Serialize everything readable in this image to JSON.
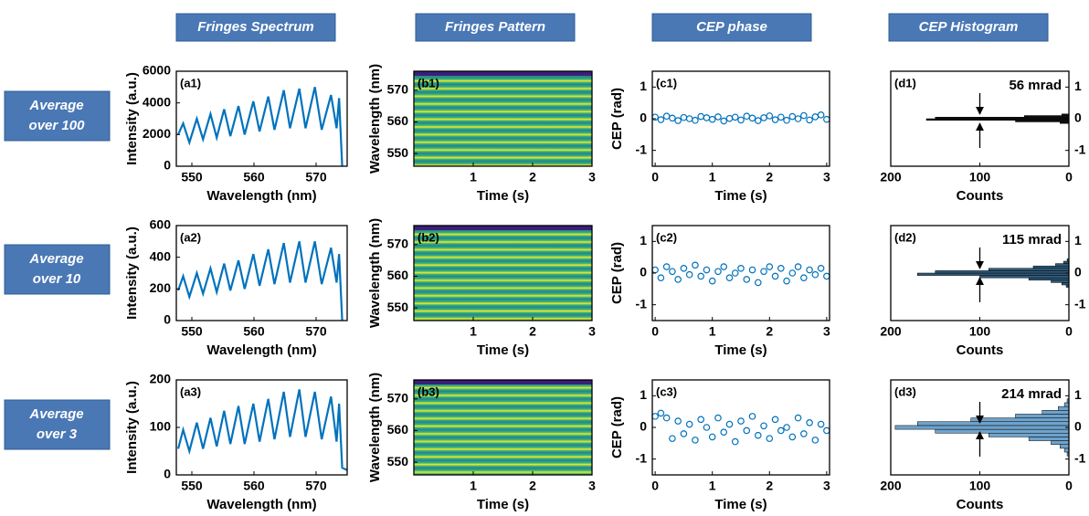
{
  "column_headers": [
    "Fringes Spectrum",
    "Fringes Pattern",
    "CEP phase",
    "CEP Histogram"
  ],
  "row_headers": [
    [
      "Average",
      "over 100"
    ],
    [
      "Average",
      "over 10"
    ],
    [
      "Average",
      "over 3"
    ]
  ],
  "chart_data": [
    {
      "type": "line",
      "panel_label": "(a1)",
      "xlabel": "Wavelength (nm)",
      "ylabel": "Intensity (a.u.)",
      "xlim": [
        547.5,
        575
      ],
      "ylim": [
        0,
        6000
      ],
      "xticks": [
        550,
        560,
        570
      ],
      "yticks": [
        0,
        2000,
        4000,
        6000
      ],
      "color": "#0072bd",
      "x": [
        547.8,
        548.6,
        549.6,
        550.8,
        551.8,
        553.0,
        554.0,
        555.2,
        556.2,
        557.5,
        558.5,
        559.9,
        560.9,
        562.3,
        563.3,
        564.8,
        565.8,
        567.3,
        568.3,
        569.8,
        570.9,
        572.4,
        573.3,
        573.7,
        574.2
      ],
      "values": [
        2000,
        2700,
        1500,
        3000,
        1700,
        3300,
        1800,
        3600,
        1900,
        3800,
        2000,
        4100,
        2200,
        4400,
        2300,
        4800,
        2400,
        4900,
        2400,
        5000,
        2300,
        4500,
        2400,
        4300,
        0
      ]
    },
    {
      "type": "image",
      "panel_label": "(b1)",
      "xlabel": "Time (s)",
      "ylabel": "Wavelength (nm)",
      "xlim": [
        0,
        3
      ],
      "ylim": [
        546,
        576
      ],
      "xticks": [
        1,
        2,
        3
      ],
      "yticks": [
        550,
        560,
        570
      ]
    },
    {
      "type": "scatter",
      "panel_label": "(c1)",
      "xlabel": "Time (s)",
      "ylabel": "CEP (rad)",
      "xlim": [
        -0.05,
        3.05
      ],
      "ylim": [
        -1.5,
        1.5
      ],
      "xticks": [
        0,
        1,
        2,
        3
      ],
      "yticks": [
        -1,
        0,
        1
      ],
      "color": "#0072bd",
      "x": [
        0,
        0.1,
        0.2,
        0.3,
        0.4,
        0.5,
        0.6,
        0.7,
        0.8,
        0.9,
        1,
        1.1,
        1.2,
        1.3,
        1.4,
        1.5,
        1.6,
        1.7,
        1.8,
        1.9,
        2,
        2.1,
        2.2,
        2.3,
        2.4,
        2.5,
        2.6,
        2.7,
        2.8,
        2.9,
        3
      ],
      "values": [
        0.05,
        -0.03,
        0.08,
        0.02,
        -0.06,
        0.04,
        0.0,
        -0.05,
        0.07,
        0.03,
        -0.02,
        0.06,
        -0.07,
        0.01,
        0.05,
        -0.04,
        0.08,
        0.02,
        -0.06,
        0.03,
        0.09,
        -0.03,
        0.05,
        -0.05,
        0.07,
        0.0,
        0.1,
        -0.04,
        0.06,
        0.12,
        -0.02
      ]
    },
    {
      "type": "histogram",
      "panel_label": "(d1)",
      "xlabel": "Counts",
      "annotation": "56 mrad",
      "xlim": [
        200,
        0
      ],
      "ylim": [
        -1.5,
        1.5
      ],
      "xticks": [
        200,
        100,
        0
      ],
      "yticks": [
        1,
        0,
        -1
      ],
      "y_axis_side": "right",
      "color": "#111111",
      "bins": [
        -0.15,
        -0.1,
        -0.05,
        0,
        0.05,
        0.1,
        0.15
      ],
      "values": [
        10,
        60,
        160,
        150,
        50,
        8
      ]
    },
    {
      "type": "line",
      "panel_label": "(a2)",
      "xlabel": "Wavelength (nm)",
      "ylabel": "Intensity (a.u.)",
      "xlim": [
        547.5,
        575
      ],
      "ylim": [
        0,
        600
      ],
      "xticks": [
        550,
        560,
        570
      ],
      "yticks": [
        0,
        200,
        400,
        600
      ],
      "color": "#0072bd",
      "x": [
        547.8,
        548.6,
        549.6,
        550.8,
        551.8,
        553.0,
        554.0,
        555.2,
        556.2,
        557.5,
        558.5,
        559.9,
        560.9,
        562.3,
        563.3,
        564.8,
        565.8,
        567.3,
        568.3,
        569.8,
        570.9,
        572.4,
        573.3,
        573.7,
        574.2
      ],
      "values": [
        190,
        280,
        150,
        300,
        170,
        330,
        180,
        360,
        190,
        380,
        200,
        420,
        220,
        450,
        230,
        490,
        240,
        500,
        240,
        500,
        230,
        460,
        240,
        420,
        0
      ]
    },
    {
      "type": "image",
      "panel_label": "(b2)",
      "xlabel": "Time (s)",
      "ylabel": "Wavelength (nm)",
      "xlim": [
        0,
        3
      ],
      "ylim": [
        546,
        576
      ],
      "xticks": [
        1,
        2,
        3
      ],
      "yticks": [
        550,
        560,
        570
      ]
    },
    {
      "type": "scatter",
      "panel_label": "(c2)",
      "xlabel": "Time (s)",
      "ylabel": "CEP (rad)",
      "xlim": [
        -0.05,
        3.05
      ],
      "ylim": [
        -1.5,
        1.5
      ],
      "xticks": [
        0,
        1,
        2,
        3
      ],
      "yticks": [
        -1,
        0,
        1
      ],
      "color": "#0072bd",
      "x": [
        0,
        0.1,
        0.2,
        0.3,
        0.4,
        0.5,
        0.6,
        0.7,
        0.8,
        0.9,
        1,
        1.1,
        1.2,
        1.3,
        1.4,
        1.5,
        1.6,
        1.7,
        1.8,
        1.9,
        2,
        2.1,
        2.2,
        2.3,
        2.4,
        2.5,
        2.6,
        2.7,
        2.8,
        2.9,
        3
      ],
      "values": [
        0.1,
        -0.15,
        0.2,
        0.05,
        -0.2,
        0.15,
        -0.05,
        0.25,
        -0.1,
        0.1,
        -0.25,
        0.05,
        0.2,
        -0.15,
        0.0,
        0.15,
        -0.2,
        0.1,
        -0.3,
        0.05,
        0.2,
        -0.1,
        0.15,
        -0.25,
        0.0,
        0.2,
        -0.15,
        0.1,
        -0.05,
        0.15,
        -0.1
      ]
    },
    {
      "type": "histogram",
      "panel_label": "(d2)",
      "xlabel": "Counts",
      "annotation": "115 mrad",
      "xlim": [
        200,
        0
      ],
      "ylim": [
        -1.5,
        1.5
      ],
      "xticks": [
        200,
        100,
        0
      ],
      "yticks": [
        1,
        0,
        -1
      ],
      "y_axis_side": "right",
      "color": "#2f5a7a",
      "bins": [
        -0.45,
        -0.375,
        -0.3,
        -0.225,
        -0.15,
        -0.075,
        0,
        0.075,
        0.15,
        0.225,
        0.3,
        0.375,
        0.45
      ],
      "values": [
        3,
        8,
        20,
        45,
        100,
        170,
        150,
        90,
        40,
        15,
        6,
        2
      ]
    },
    {
      "type": "line",
      "panel_label": "(a3)",
      "xlabel": "Wavelength (nm)",
      "ylabel": "Intensity (a.u.)",
      "xlim": [
        547.5,
        575
      ],
      "ylim": [
        0,
        200
      ],
      "xticks": [
        550,
        560,
        570
      ],
      "yticks": [
        0,
        100,
        200
      ],
      "color": "#0072bd",
      "x": [
        547.8,
        548.6,
        549.6,
        550.8,
        551.8,
        553.0,
        554.0,
        555.2,
        556.2,
        557.5,
        558.5,
        559.9,
        560.9,
        562.3,
        563.3,
        564.8,
        565.8,
        567.3,
        568.3,
        569.8,
        570.9,
        572.4,
        573.3,
        573.7,
        574.2,
        575
      ],
      "values": [
        55,
        95,
        50,
        110,
        55,
        120,
        60,
        135,
        65,
        145,
        65,
        150,
        70,
        160,
        75,
        175,
        80,
        180,
        80,
        175,
        75,
        165,
        70,
        150,
        15,
        10
      ]
    },
    {
      "type": "image",
      "panel_label": "(b3)",
      "xlabel": "Time (s)",
      "ylabel": "Wavelength (nm)",
      "xlim": [
        0,
        3
      ],
      "ylim": [
        546,
        576
      ],
      "xticks": [
        1,
        2,
        3
      ],
      "yticks": [
        550,
        560,
        570
      ]
    },
    {
      "type": "scatter",
      "panel_label": "(c3)",
      "xlabel": "Time (s)",
      "ylabel": "CEP (rad)",
      "xlim": [
        -0.05,
        3.05
      ],
      "ylim": [
        -1.5,
        1.5
      ],
      "xticks": [
        0,
        1,
        2,
        3
      ],
      "yticks": [
        -1,
        0,
        1
      ],
      "color": "#0072bd",
      "x": [
        0,
        0.1,
        0.2,
        0.3,
        0.4,
        0.5,
        0.6,
        0.7,
        0.8,
        0.9,
        1,
        1.1,
        1.2,
        1.3,
        1.4,
        1.5,
        1.6,
        1.7,
        1.8,
        1.9,
        2,
        2.1,
        2.2,
        2.3,
        2.4,
        2.5,
        2.6,
        2.7,
        2.8,
        2.9,
        3
      ],
      "values": [
        0.35,
        0.45,
        0.3,
        -0.35,
        0.2,
        -0.2,
        0.1,
        -0.4,
        0.25,
        0.0,
        -0.3,
        0.3,
        -0.15,
        0.1,
        -0.45,
        0.2,
        -0.1,
        0.35,
        -0.25,
        0.05,
        -0.35,
        0.25,
        -0.1,
        0.0,
        -0.3,
        0.3,
        -0.2,
        0.15,
        -0.4,
        0.1,
        -0.1
      ]
    },
    {
      "type": "histogram",
      "panel_label": "(d3)",
      "xlabel": "Counts",
      "annotation": "214 mrad",
      "xlim": [
        200,
        0
      ],
      "ylim": [
        -1.5,
        1.5
      ],
      "xticks": [
        200,
        100,
        0
      ],
      "yticks": [
        1,
        0,
        -1
      ],
      "y_axis_side": "right",
      "color": "#6ea3cc",
      "bins": [
        -0.9,
        -0.78,
        -0.66,
        -0.54,
        -0.42,
        -0.3,
        -0.18,
        -0.06,
        0.06,
        0.18,
        0.3,
        0.42,
        0.54,
        0.66,
        0.78,
        0.9
      ],
      "values": [
        2,
        5,
        10,
        20,
        45,
        90,
        150,
        195,
        170,
        110,
        60,
        30,
        12,
        5,
        2
      ]
    }
  ]
}
